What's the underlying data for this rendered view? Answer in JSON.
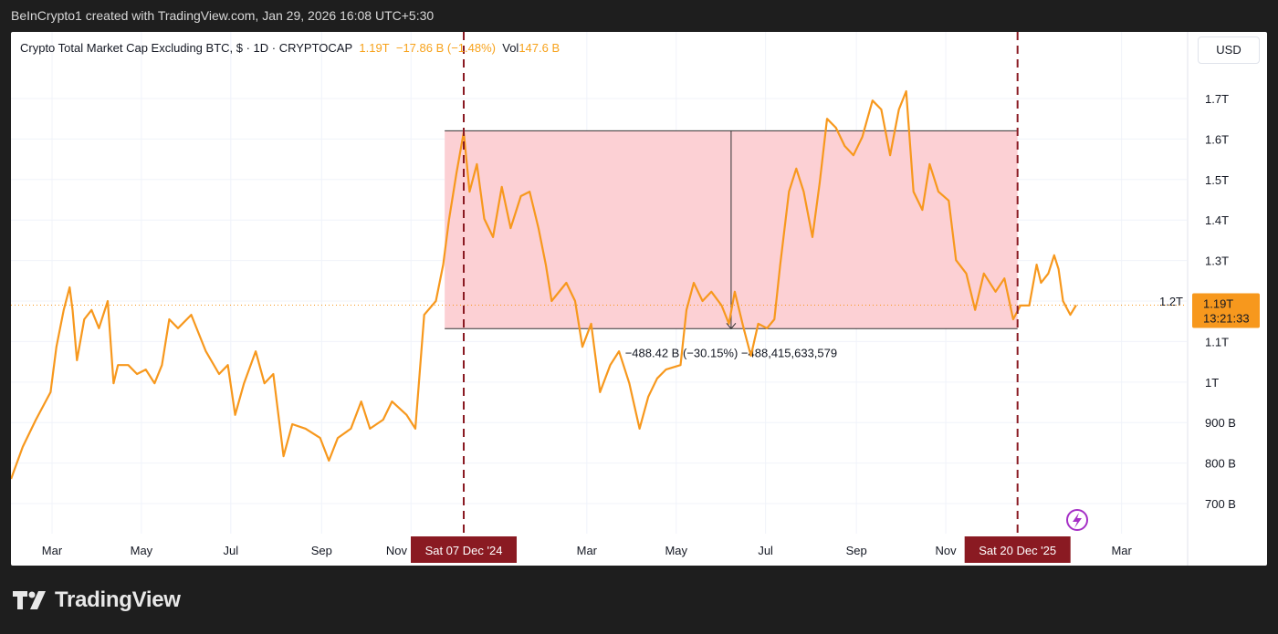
{
  "header": {
    "attribution": "BeInCrypto1 created with TradingView.com, Jan 29, 2026 16:08 UTC+5:30"
  },
  "legend": {
    "symbol": "Crypto Total Market Cap Excluding BTC, $ · 1D · CRYPTOCAP",
    "last": "1.19T",
    "change": "−17.86 B (−1.48%)",
    "vol_label": "Vol",
    "vol_value": "147.6 B"
  },
  "price_axis": {
    "currency": "USD",
    "last_price": "1.19T",
    "countdown": "13:21:33"
  },
  "footer": {
    "brand": "TradingView"
  },
  "colors": {
    "line": "#f7981d",
    "range_fill": "#fcd0d4",
    "marker": "#8a1a22",
    "last_price_bg": "#f7981d",
    "icon": "#a52fc6"
  },
  "chart_data": {
    "type": "line",
    "title": "Crypto Total Market Cap Excluding BTC",
    "ylabel": "USD",
    "y_unit": "billions USD",
    "ylim": [
      640,
      1825
    ],
    "xlim": [
      "2024-02-02",
      "2026-04-15"
    ],
    "grid": true,
    "yticks": [
      {
        "v": 700,
        "label": "700 B"
      },
      {
        "v": 800,
        "label": "800 B"
      },
      {
        "v": 900,
        "label": "900 B"
      },
      {
        "v": 1000,
        "label": "1T"
      },
      {
        "v": 1100,
        "label": "1.1T"
      },
      {
        "v": 1200,
        "label": "1.2T"
      },
      {
        "v": 1300,
        "label": "1.3T"
      },
      {
        "v": 1400,
        "label": "1.4T"
      },
      {
        "v": 1500,
        "label": "1.5T"
      },
      {
        "v": 1600,
        "label": "1.6T"
      },
      {
        "v": 1700,
        "label": "1.7T"
      }
    ],
    "xticks": [
      {
        "d": "2024-03-01",
        "label": "Mar"
      },
      {
        "d": "2024-05-01",
        "label": "May"
      },
      {
        "d": "2024-07-01",
        "label": "Jul"
      },
      {
        "d": "2024-09-01",
        "label": "Sep"
      },
      {
        "d": "2024-11-01",
        "label": "Nov"
      },
      {
        "d": "2025-03-01",
        "label": "Mar"
      },
      {
        "d": "2025-05-01",
        "label": "May"
      },
      {
        "d": "2025-07-01",
        "label": "Jul"
      },
      {
        "d": "2025-09-01",
        "label": "Sep"
      },
      {
        "d": "2025-11-01",
        "label": "Nov"
      },
      {
        "d": "2026-03-01",
        "label": "Mar"
      }
    ],
    "series": [
      {
        "points": [
          [
            "2024-02-02",
            761
          ],
          [
            "2024-02-10",
            840
          ],
          [
            "2024-02-19",
            907
          ],
          [
            "2024-02-29",
            975
          ],
          [
            "2024-03-04",
            1087
          ],
          [
            "2024-03-09",
            1178
          ],
          [
            "2024-03-13",
            1234
          ],
          [
            "2024-03-15",
            1178
          ],
          [
            "2024-03-18",
            1054
          ],
          [
            "2024-03-23",
            1155
          ],
          [
            "2024-03-28",
            1178
          ],
          [
            "2024-04-02",
            1133
          ],
          [
            "2024-04-08",
            1200
          ],
          [
            "2024-04-12",
            997
          ],
          [
            "2024-04-15",
            1042
          ],
          [
            "2024-04-22",
            1042
          ],
          [
            "2024-04-28",
            1020
          ],
          [
            "2024-05-04",
            1031
          ],
          [
            "2024-05-10",
            997
          ],
          [
            "2024-05-15",
            1042
          ],
          [
            "2024-05-20",
            1155
          ],
          [
            "2024-05-26",
            1133
          ],
          [
            "2024-06-04",
            1166
          ],
          [
            "2024-06-09",
            1121
          ],
          [
            "2024-06-14",
            1076
          ],
          [
            "2024-06-23",
            1020
          ],
          [
            "2024-06-29",
            1042
          ],
          [
            "2024-07-04",
            919
          ],
          [
            "2024-07-10",
            997
          ],
          [
            "2024-07-18",
            1076
          ],
          [
            "2024-07-24",
            997
          ],
          [
            "2024-07-30",
            1020
          ],
          [
            "2024-08-06",
            817
          ],
          [
            "2024-08-12",
            896
          ],
          [
            "2024-08-21",
            885
          ],
          [
            "2024-08-31",
            862
          ],
          [
            "2024-09-06",
            806
          ],
          [
            "2024-09-12",
            862
          ],
          [
            "2024-09-21",
            885
          ],
          [
            "2024-09-28",
            952
          ],
          [
            "2024-10-04",
            885
          ],
          [
            "2024-10-13",
            907
          ],
          [
            "2024-10-19",
            952
          ],
          [
            "2024-10-29",
            919
          ],
          [
            "2024-11-04",
            885
          ],
          [
            "2024-11-10",
            1166
          ],
          [
            "2024-11-18",
            1200
          ],
          [
            "2024-11-23",
            1290
          ],
          [
            "2024-11-27",
            1403
          ],
          [
            "2024-12-02",
            1515
          ],
          [
            "2024-12-07",
            1617
          ],
          [
            "2024-12-11",
            1470
          ],
          [
            "2024-12-16",
            1538
          ],
          [
            "2024-12-21",
            1403
          ],
          [
            "2024-12-27",
            1358
          ],
          [
            "2025-01-02",
            1482
          ],
          [
            "2025-01-08",
            1380
          ],
          [
            "2025-01-15",
            1459
          ],
          [
            "2025-01-21",
            1470
          ],
          [
            "2025-01-27",
            1380
          ],
          [
            "2025-02-01",
            1290
          ],
          [
            "2025-02-05",
            1200
          ],
          [
            "2025-02-15",
            1245
          ],
          [
            "2025-02-21",
            1200
          ],
          [
            "2025-02-26",
            1087
          ],
          [
            "2025-03-04",
            1144
          ],
          [
            "2025-03-10",
            975
          ],
          [
            "2025-03-17",
            1042
          ],
          [
            "2025-03-23",
            1076
          ],
          [
            "2025-03-30",
            997
          ],
          [
            "2025-04-06",
            885
          ],
          [
            "2025-04-12",
            964
          ],
          [
            "2025-04-18",
            1009
          ],
          [
            "2025-04-24",
            1031
          ],
          [
            "2025-05-04",
            1042
          ],
          [
            "2025-05-08",
            1178
          ],
          [
            "2025-05-13",
            1245
          ],
          [
            "2025-05-19",
            1200
          ],
          [
            "2025-05-25",
            1223
          ],
          [
            "2025-06-01",
            1189
          ],
          [
            "2025-06-06",
            1144
          ],
          [
            "2025-06-10",
            1223
          ],
          [
            "2025-06-16",
            1133
          ],
          [
            "2025-06-21",
            1065
          ],
          [
            "2025-06-26",
            1144
          ],
          [
            "2025-07-02",
            1133
          ],
          [
            "2025-07-07",
            1155
          ],
          [
            "2025-07-11",
            1290
          ],
          [
            "2025-07-17",
            1470
          ],
          [
            "2025-07-22",
            1527
          ],
          [
            "2025-07-27",
            1470
          ],
          [
            "2025-08-02",
            1358
          ],
          [
            "2025-08-07",
            1493
          ],
          [
            "2025-08-12",
            1650
          ],
          [
            "2025-08-18",
            1628
          ],
          [
            "2025-08-24",
            1583
          ],
          [
            "2025-08-30",
            1560
          ],
          [
            "2025-09-05",
            1605
          ],
          [
            "2025-09-12",
            1695
          ],
          [
            "2025-09-18",
            1673
          ],
          [
            "2025-09-24",
            1560
          ],
          [
            "2025-09-30",
            1673
          ],
          [
            "2025-10-05",
            1718
          ],
          [
            "2025-10-10",
            1470
          ],
          [
            "2025-10-16",
            1425
          ],
          [
            "2025-10-21",
            1538
          ],
          [
            "2025-10-27",
            1470
          ],
          [
            "2025-11-03",
            1448
          ],
          [
            "2025-11-08",
            1301
          ],
          [
            "2025-11-15",
            1268
          ],
          [
            "2025-11-21",
            1178
          ],
          [
            "2025-11-27",
            1268
          ],
          [
            "2025-12-05",
            1223
          ],
          [
            "2025-12-11",
            1256
          ],
          [
            "2025-12-17",
            1155
          ],
          [
            "2025-12-22",
            1189
          ],
          [
            "2025-12-28",
            1189
          ],
          [
            "2026-01-02",
            1290
          ],
          [
            "2026-01-05",
            1245
          ],
          [
            "2026-01-10",
            1268
          ],
          [
            "2026-01-14",
            1313
          ],
          [
            "2026-01-17",
            1279
          ],
          [
            "2026-01-20",
            1200
          ],
          [
            "2026-01-25",
            1166
          ],
          [
            "2026-01-29",
            1190
          ]
        ]
      }
    ],
    "last_value": 1190,
    "range_box": {
      "start": "2024-11-24",
      "end": "2025-12-20",
      "top": 1620.2,
      "bottom": 1131.8,
      "label": "−488.42 B (−30.15%) −488,415,633,579"
    },
    "markers": [
      {
        "date": "2024-12-07",
        "label": "Sat 07 Dec '24"
      },
      {
        "date": "2025-12-20",
        "label": "Sat 20 Dec '25"
      }
    ]
  }
}
